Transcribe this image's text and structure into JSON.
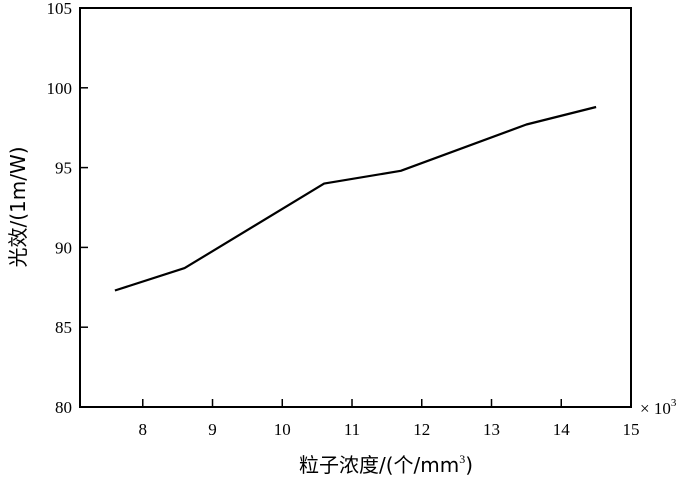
{
  "chart_data": {
    "type": "line",
    "title": "",
    "xlabel_main": "粒子浓度/(个/mm",
    "xlabel_sup": "3",
    "xlabel_tail": ")",
    "ylabel": "光效/(1m/W)",
    "x_multiplier": "× 10",
    "x_multiplier_exp": "3",
    "xlim": [
      7.1,
      15
    ],
    "ylim": [
      80,
      105
    ],
    "x_ticks": [
      8,
      9,
      10,
      11,
      12,
      13,
      14,
      15
    ],
    "y_ticks": [
      80,
      85,
      90,
      95,
      100,
      105
    ],
    "grid": false,
    "series": [
      {
        "x": [
          7.6,
          8.6,
          10.6,
          11.7,
          13.5,
          14.5
        ],
        "y": [
          87.3,
          88.7,
          94.0,
          94.8,
          97.7,
          98.8
        ]
      }
    ]
  }
}
